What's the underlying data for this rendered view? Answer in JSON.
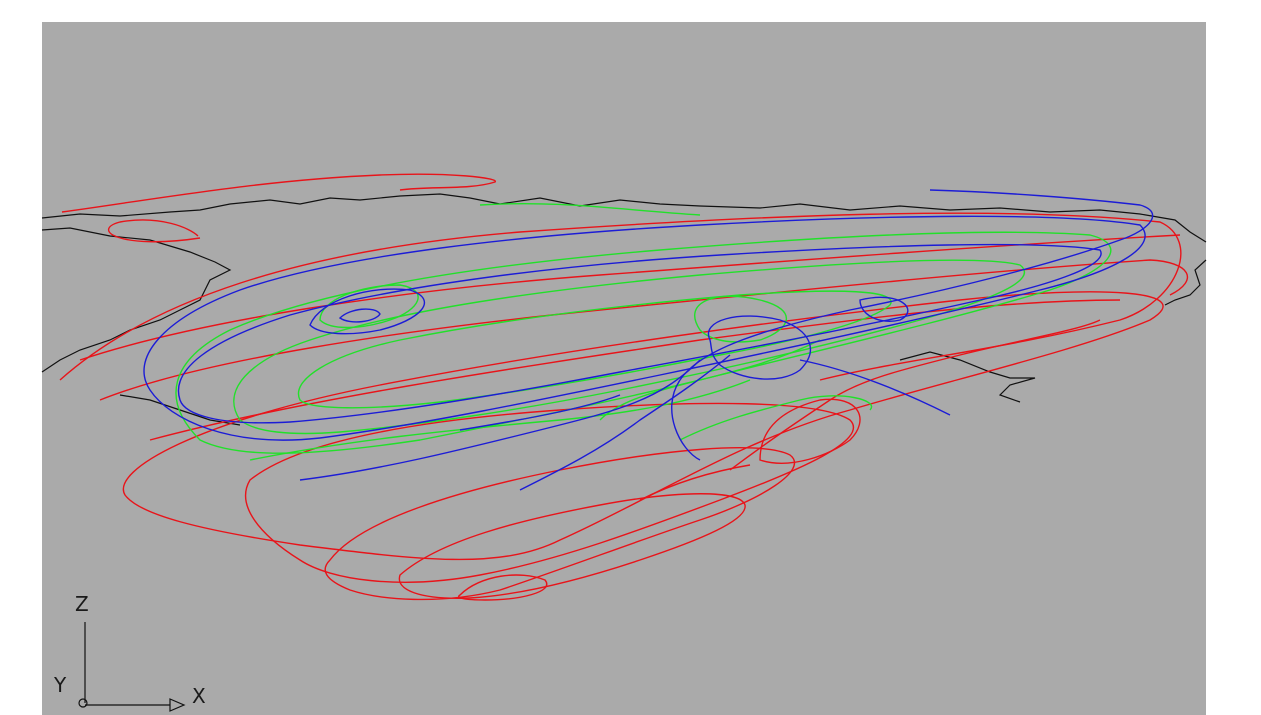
{
  "axis_icon": {
    "z": "Z",
    "y": "Y",
    "x": "X"
  }
}
